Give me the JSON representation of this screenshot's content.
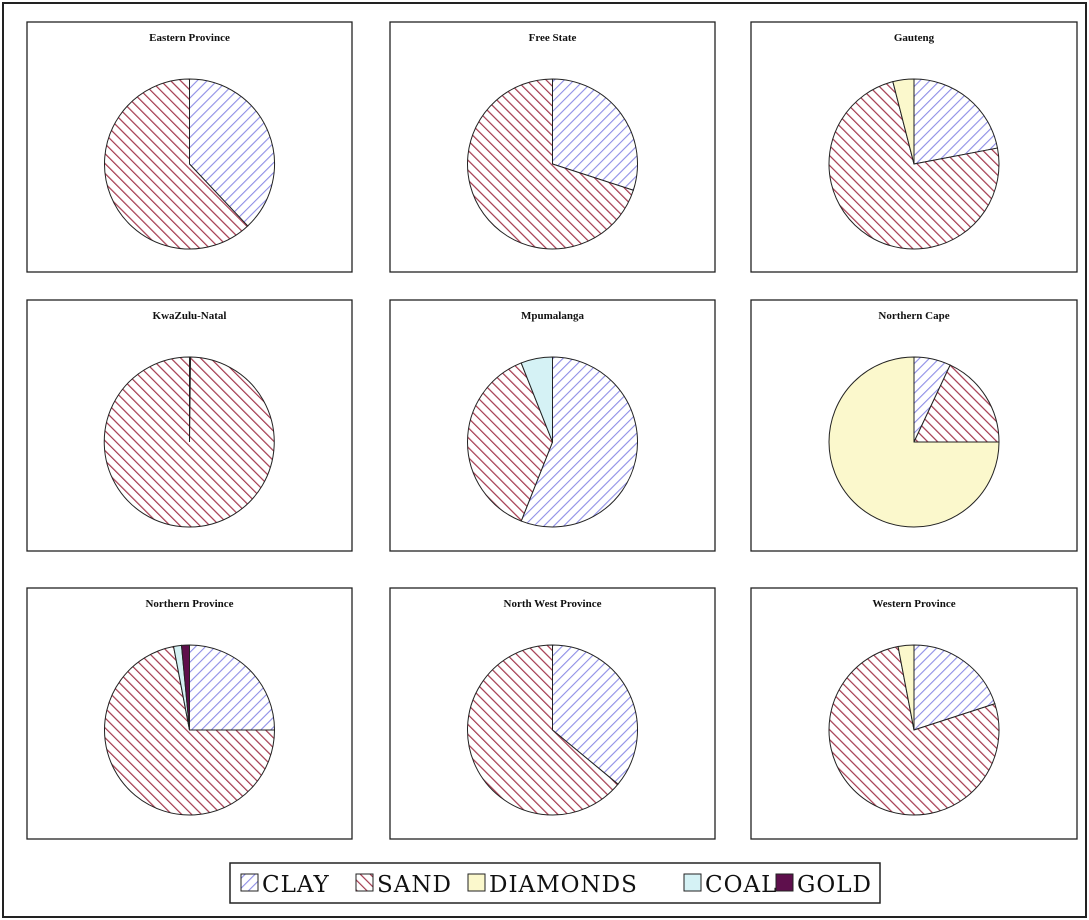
{
  "colors": {
    "clay_stripe": "#8e8ee6",
    "sand_stripe": "#a3384d",
    "diamonds": "#fbf8cc",
    "coal": "#d5f2f5",
    "gold": "#5e0f4c",
    "outline": "#222222"
  },
  "chart_data": [
    {
      "type": "pie",
      "title": "Eastern Province",
      "slices": [
        {
          "label": "CLAY",
          "value": 38
        },
        {
          "label": "SAND",
          "value": 62
        }
      ]
    },
    {
      "type": "pie",
      "title": "Free State",
      "slices": [
        {
          "label": "CLAY",
          "value": 30
        },
        {
          "label": "SAND",
          "value": 70
        }
      ]
    },
    {
      "type": "pie",
      "title": "Gauteng",
      "slices": [
        {
          "label": "CLAY",
          "value": 22
        },
        {
          "label": "SAND",
          "value": 74
        },
        {
          "label": "DIAMONDS",
          "value": 4
        }
      ]
    },
    {
      "type": "pie",
      "title": "KwaZulu-Natal",
      "slices": [
        {
          "label": "CLAY",
          "value": 0.2
        },
        {
          "label": "SAND",
          "value": 99.8
        }
      ]
    },
    {
      "type": "pie",
      "title": "Mpumalanga",
      "slices": [
        {
          "label": "CLAY",
          "value": 56
        },
        {
          "label": "SAND",
          "value": 38
        },
        {
          "label": "COAL",
          "value": 6
        }
      ]
    },
    {
      "type": "pie",
      "title": "Northern Cape",
      "slices": [
        {
          "label": "CLAY",
          "value": 7
        },
        {
          "label": "SAND",
          "value": 18
        },
        {
          "label": "DIAMONDS",
          "value": 75
        }
      ]
    },
    {
      "type": "pie",
      "title": "Northern Province",
      "slices": [
        {
          "label": "CLAY",
          "value": 25
        },
        {
          "label": "SAND",
          "value": 72
        },
        {
          "label": "COAL",
          "value": 1.5
        },
        {
          "label": "GOLD",
          "value": 1.5
        }
      ]
    },
    {
      "type": "pie",
      "title": "North West Province",
      "slices": [
        {
          "label": "CLAY",
          "value": 36
        },
        {
          "label": "SAND",
          "value": 64
        }
      ]
    },
    {
      "type": "pie",
      "title": "Western Province",
      "slices": [
        {
          "label": "CLAY",
          "value": 20
        },
        {
          "label": "SAND",
          "value": 77
        },
        {
          "label": "DIAMONDS",
          "value": 3
        }
      ]
    }
  ],
  "legend": {
    "items": [
      {
        "key": "CLAY",
        "label": "CLAY"
      },
      {
        "key": "SAND",
        "label": "SAND"
      },
      {
        "key": "DIAMONDS",
        "label": "DIAMONDS"
      },
      {
        "key": "COAL",
        "label": "COAL"
      },
      {
        "key": "GOLD",
        "label": "GOLD"
      }
    ]
  }
}
